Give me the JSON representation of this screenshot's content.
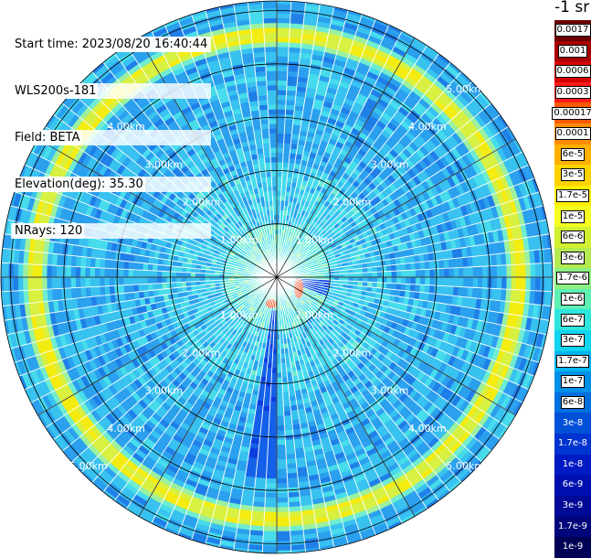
{
  "info": {
    "start_time": "Start time: 2023/08/20 16:40:44",
    "instrument": "WLS200s-181",
    "field": "Field: BETA",
    "elevation": "Elevation(deg): 35.30",
    "nrays": "NRays: 120"
  },
  "colorbar": {
    "unit_title": "-1 sr",
    "labels": [
      "0.0017",
      "0.001",
      "0.0006",
      "0.0003",
      "0.00017",
      "0.0001",
      "6e-5",
      "3e-5",
      "1.7e-5",
      "1e-5",
      "6e-6",
      "3e-6",
      "1.7e-6",
      "1e-6",
      "6e-7",
      "3e-7",
      "1.7e-7",
      "1e-7",
      "6e-8",
      "3e-8",
      "1.7e-8",
      "1e-8",
      "6e-9",
      "3e-9",
      "1.7e-9",
      "1e-9"
    ],
    "colors": [
      "#6e0000",
      "#a80000",
      "#d40000",
      "#ff1a1a",
      "#ff5a00",
      "#ff8c00",
      "#ffb000",
      "#ffd200",
      "#ffee00",
      "#f4ff20",
      "#d2f030",
      "#b4ec50",
      "#8cf080",
      "#5ef0b4",
      "#2ee6dc",
      "#10d4f0",
      "#00b4f0",
      "#0090e8",
      "#0070e0",
      "#0050d8",
      "#0034d0",
      "#001ac4",
      "#0010b0",
      "#000a96",
      "#00067a",
      "#000055"
    ],
    "dark_from": 19
  },
  "rings": {
    "labels": [
      "1.00km",
      "2.00km",
      "3.00km",
      "4.00km",
      "5.00km"
    ],
    "radius_km": [
      1,
      2,
      3,
      4,
      5
    ]
  },
  "scan": {
    "rays": 120,
    "aerosol_ring_km": 4.55,
    "near_features": [
      {
        "name": "red-echo-east",
        "color": "#ff3300"
      },
      {
        "name": "red-echo-south",
        "color": "#ff3300"
      }
    ]
  }
}
